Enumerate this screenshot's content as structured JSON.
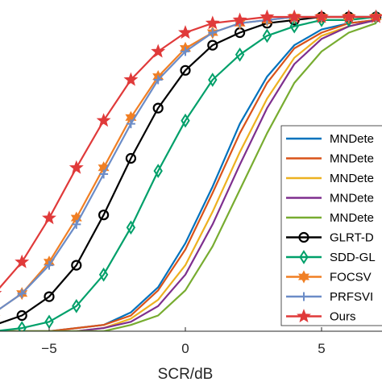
{
  "chart_data": {
    "type": "line",
    "title": "",
    "xlabel": "SCR/dB",
    "ylabel": "",
    "xlim": [
      -7,
      7.3
    ],
    "ylim": [
      0,
      1
    ],
    "x_ticks": [
      -5,
      0,
      5
    ],
    "x_tick_labels": [
      "−5",
      "0",
      "5"
    ],
    "grid": false,
    "legend_placement": "bottom-right",
    "series": [
      {
        "name": "MNDete",
        "color": "#0072BD",
        "marker": "none",
        "x": [
          -7,
          -6,
          -5,
          -4,
          -3,
          -2,
          -1,
          0,
          1,
          2,
          3,
          4,
          5,
          6,
          7
        ],
        "y": [
          0.0,
          0.0,
          0.0,
          0.01,
          0.02,
          0.06,
          0.14,
          0.28,
          0.46,
          0.66,
          0.81,
          0.91,
          0.96,
          0.98,
          0.99
        ]
      },
      {
        "name": "MNDete",
        "color": "#D95319",
        "marker": "none",
        "x": [
          -7,
          -6,
          -5,
          -4,
          -3,
          -2,
          -1,
          0,
          1,
          2,
          3,
          4,
          5,
          6,
          7
        ],
        "y": [
          0.0,
          0.0,
          0.0,
          0.01,
          0.02,
          0.05,
          0.13,
          0.26,
          0.44,
          0.63,
          0.79,
          0.9,
          0.95,
          0.98,
          0.99
        ]
      },
      {
        "name": "MNDete",
        "color": "#EDB120",
        "marker": "none",
        "x": [
          -7,
          -6,
          -5,
          -4,
          -3,
          -2,
          -1,
          0,
          1,
          2,
          3,
          4,
          5,
          6,
          7
        ],
        "y": [
          0.0,
          0.0,
          0.0,
          0.0,
          0.01,
          0.04,
          0.1,
          0.21,
          0.38,
          0.57,
          0.74,
          0.87,
          0.94,
          0.97,
          0.99
        ]
      },
      {
        "name": "MNDete",
        "color": "#7E2F8E",
        "marker": "none",
        "x": [
          -7,
          -6,
          -5,
          -4,
          -3,
          -2,
          -1,
          0,
          1,
          2,
          3,
          4,
          5,
          6,
          7
        ],
        "y": [
          0.0,
          0.0,
          0.0,
          0.0,
          0.01,
          0.03,
          0.08,
          0.18,
          0.34,
          0.53,
          0.71,
          0.85,
          0.93,
          0.97,
          0.99
        ]
      },
      {
        "name": "MNDete",
        "color": "#77AC30",
        "marker": "none",
        "x": [
          -7,
          -6,
          -5,
          -4,
          -3,
          -2,
          -1,
          0,
          1,
          2,
          3,
          4,
          5,
          6,
          7
        ],
        "y": [
          0.0,
          0.0,
          0.0,
          0.0,
          0.0,
          0.02,
          0.05,
          0.13,
          0.27,
          0.45,
          0.63,
          0.79,
          0.89,
          0.95,
          0.98
        ]
      },
      {
        "name": "GLRT-D",
        "color": "#000000",
        "marker": "circle",
        "x": [
          -7,
          -6,
          -5,
          -4,
          -3,
          -2,
          -1,
          0,
          1,
          2,
          3,
          4,
          5,
          6,
          7
        ],
        "y": [
          0.02,
          0.05,
          0.11,
          0.21,
          0.37,
          0.55,
          0.71,
          0.83,
          0.91,
          0.95,
          0.98,
          0.99,
          1.0,
          1.0,
          1.0
        ]
      },
      {
        "name": "SDD-GL",
        "color": "#00A06A",
        "marker": "diamond",
        "x": [
          -7,
          -6,
          -5,
          -4,
          -3,
          -2,
          -1,
          0,
          1,
          2,
          3,
          4,
          5,
          6,
          7
        ],
        "y": [
          0.0,
          0.01,
          0.03,
          0.08,
          0.18,
          0.33,
          0.51,
          0.67,
          0.8,
          0.88,
          0.94,
          0.97,
          0.99,
          0.99,
          1.0
        ]
      },
      {
        "name": "FOCSV",
        "color": "#F07F24",
        "marker": "hexagram",
        "x": [
          -7,
          -6,
          -5,
          -4,
          -3,
          -2,
          -1,
          0,
          1,
          2,
          3,
          4,
          5,
          6,
          7
        ],
        "y": [
          0.06,
          0.12,
          0.22,
          0.36,
          0.52,
          0.68,
          0.81,
          0.9,
          0.95,
          0.98,
          0.99,
          1.0,
          1.0,
          1.0,
          1.0
        ]
      },
      {
        "name": "PRFSVI",
        "color": "#6B8CC7",
        "marker": "plus",
        "x": [
          -7,
          -6,
          -5,
          -4,
          -3,
          -2,
          -1,
          0,
          1,
          2,
          3,
          4,
          5,
          6,
          7
        ],
        "y": [
          0.06,
          0.12,
          0.21,
          0.34,
          0.5,
          0.66,
          0.8,
          0.89,
          0.95,
          0.98,
          0.99,
          1.0,
          1.0,
          1.0,
          1.0
        ]
      },
      {
        "name": "Ours",
        "color": "#E03A3A",
        "marker": "pentagram",
        "x": [
          -7,
          -6,
          -5,
          -4,
          -3,
          -2,
          -1,
          0,
          1,
          2,
          3,
          4,
          5,
          6,
          7
        ],
        "y": [
          0.12,
          0.22,
          0.36,
          0.52,
          0.67,
          0.8,
          0.89,
          0.95,
          0.98,
          0.99,
          1.0,
          1.0,
          1.0,
          1.0,
          1.0
        ]
      }
    ]
  }
}
